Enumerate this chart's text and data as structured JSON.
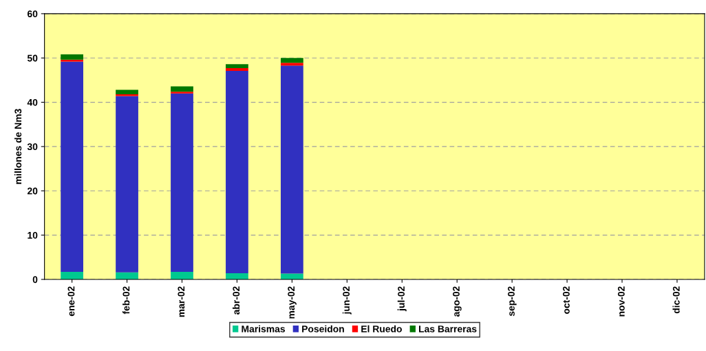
{
  "chart_data": {
    "type": "bar",
    "stacked": true,
    "ylabel": "millones de Nm3",
    "categories": [
      "ene-02",
      "feb-02",
      "mar-02",
      "abr-02",
      "may-02",
      "jun-02",
      "jul-02",
      "ago-02",
      "sep-02",
      "oct-02",
      "nov-02",
      "dic-02"
    ],
    "series": [
      {
        "name": "Marismas",
        "color": "#00c890",
        "values": [
          1.7,
          1.6,
          1.7,
          1.4,
          1.3,
          null,
          null,
          null,
          null,
          null,
          null,
          null
        ]
      },
      {
        "name": "Poseidon",
        "color": "#3030c0",
        "values": [
          47.5,
          39.8,
          40.3,
          45.7,
          47.0,
          null,
          null,
          null,
          null,
          null,
          null,
          null
        ]
      },
      {
        "name": "El Ruedo",
        "color": "#ff0000",
        "values": [
          0.4,
          0.4,
          0.4,
          0.6,
          0.6,
          null,
          null,
          null,
          null,
          null,
          null,
          null
        ]
      },
      {
        "name": "Las Barreras",
        "color": "#007800",
        "values": [
          1.2,
          1.0,
          1.2,
          0.9,
          1.1,
          null,
          null,
          null,
          null,
          null,
          null,
          null
        ]
      }
    ],
    "ylim": [
      0,
      60
    ],
    "yticks": [
      0,
      10,
      20,
      30,
      40,
      50,
      60
    ],
    "grid": "y",
    "legend": "bottom"
  }
}
